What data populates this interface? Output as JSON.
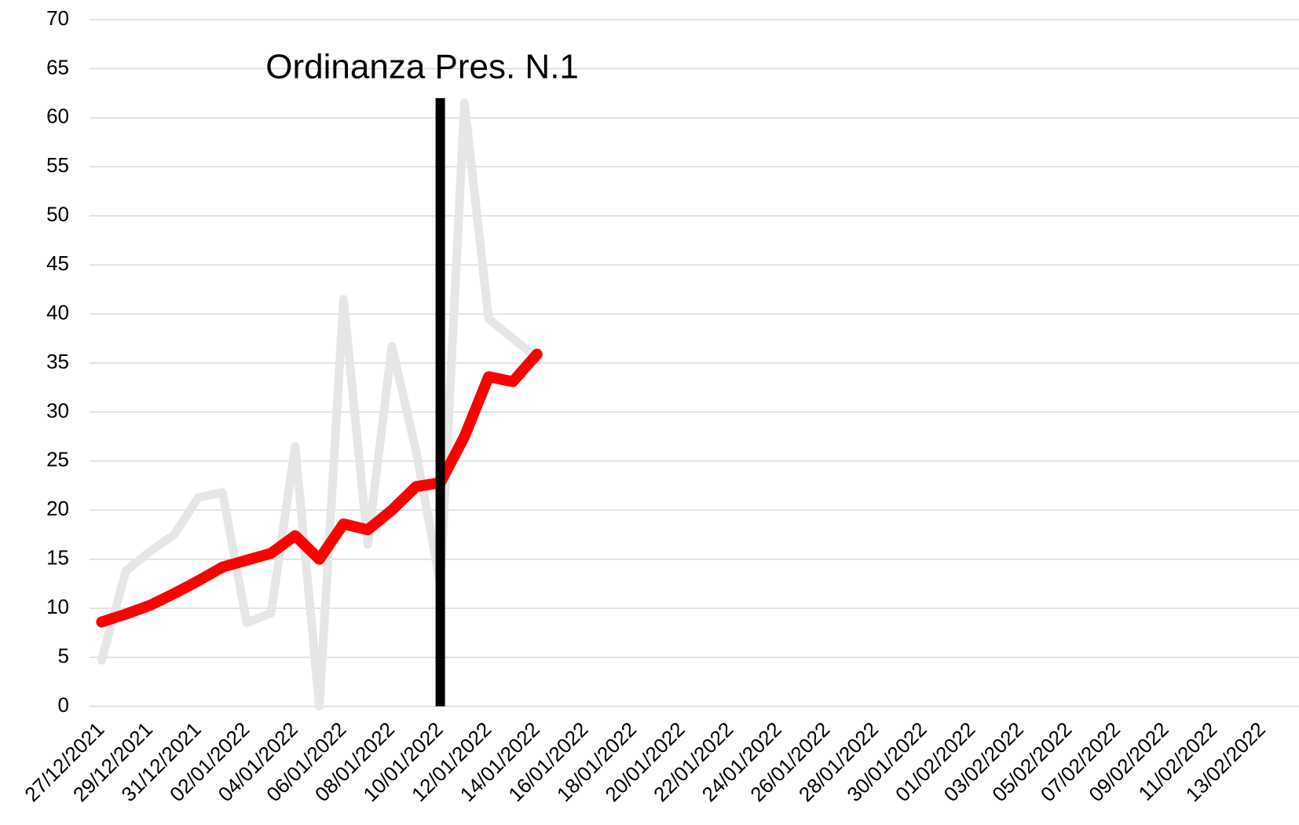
{
  "chart_data": {
    "type": "line",
    "categories": [
      "27/12/2021",
      null,
      "29/12/2021",
      null,
      "31/12/2021",
      null,
      "02/01/2022",
      null,
      "04/01/2022",
      null,
      "06/01/2022",
      null,
      "08/01/2022",
      null,
      "10/01/2022",
      null,
      "12/01/2022",
      null,
      "14/01/2022",
      null,
      "16/01/2022",
      null,
      "18/01/2022",
      null,
      "20/01/2022",
      null,
      "22/01/2022",
      null,
      "24/01/2022",
      null,
      "26/01/2022",
      null,
      "28/01/2022",
      null,
      "30/01/2022",
      null,
      "01/02/2022",
      null,
      "03/02/2022",
      null,
      "05/02/2022",
      null,
      "07/02/2022",
      null,
      "09/02/2022",
      null,
      "11/02/2022",
      null,
      "13/02/2022",
      null
    ],
    "series": [
      {
        "color": "#e6e6e6",
        "values": [
          4.7,
          13.8,
          15.8,
          17.5,
          21.3,
          21.8,
          8.5,
          9.5,
          26.5,
          0,
          41.5,
          16.5,
          36.7,
          26,
          12.5,
          61.5,
          39.5,
          37.5,
          35.5,
          null,
          null,
          null,
          null,
          null,
          null,
          null,
          null,
          null,
          null,
          null,
          null,
          null,
          null,
          null,
          null,
          null,
          null,
          null,
          null,
          null,
          null,
          null,
          null,
          null,
          null,
          null,
          null,
          null,
          null,
          null
        ]
      },
      {
        "color": "#ff0000",
        "values": [
          8.6,
          9.4,
          10.3,
          11.5,
          12.8,
          14.2,
          14.9,
          15.6,
          17.4,
          15.0,
          18.6,
          18.0,
          20.0,
          22.4,
          22.8,
          27.5,
          33.6,
          33.1,
          35.9,
          null,
          null,
          null,
          null,
          null,
          null,
          null,
          null,
          null,
          null,
          null,
          null,
          null,
          null,
          null,
          null,
          null,
          null,
          null,
          null,
          null,
          null,
          null,
          null,
          null,
          null,
          null,
          null,
          null,
          null,
          null
        ]
      }
    ],
    "ylim": [
      0,
      70
    ],
    "yticks": [
      0,
      5,
      10,
      15,
      20,
      25,
      30,
      35,
      40,
      45,
      50,
      55,
      60,
      65,
      70
    ],
    "grid": true,
    "annotation": {
      "text": "Ordinanza Pres. N.1",
      "category_index": 14,
      "y": [
        0,
        62
      ],
      "color": "#000000"
    }
  }
}
